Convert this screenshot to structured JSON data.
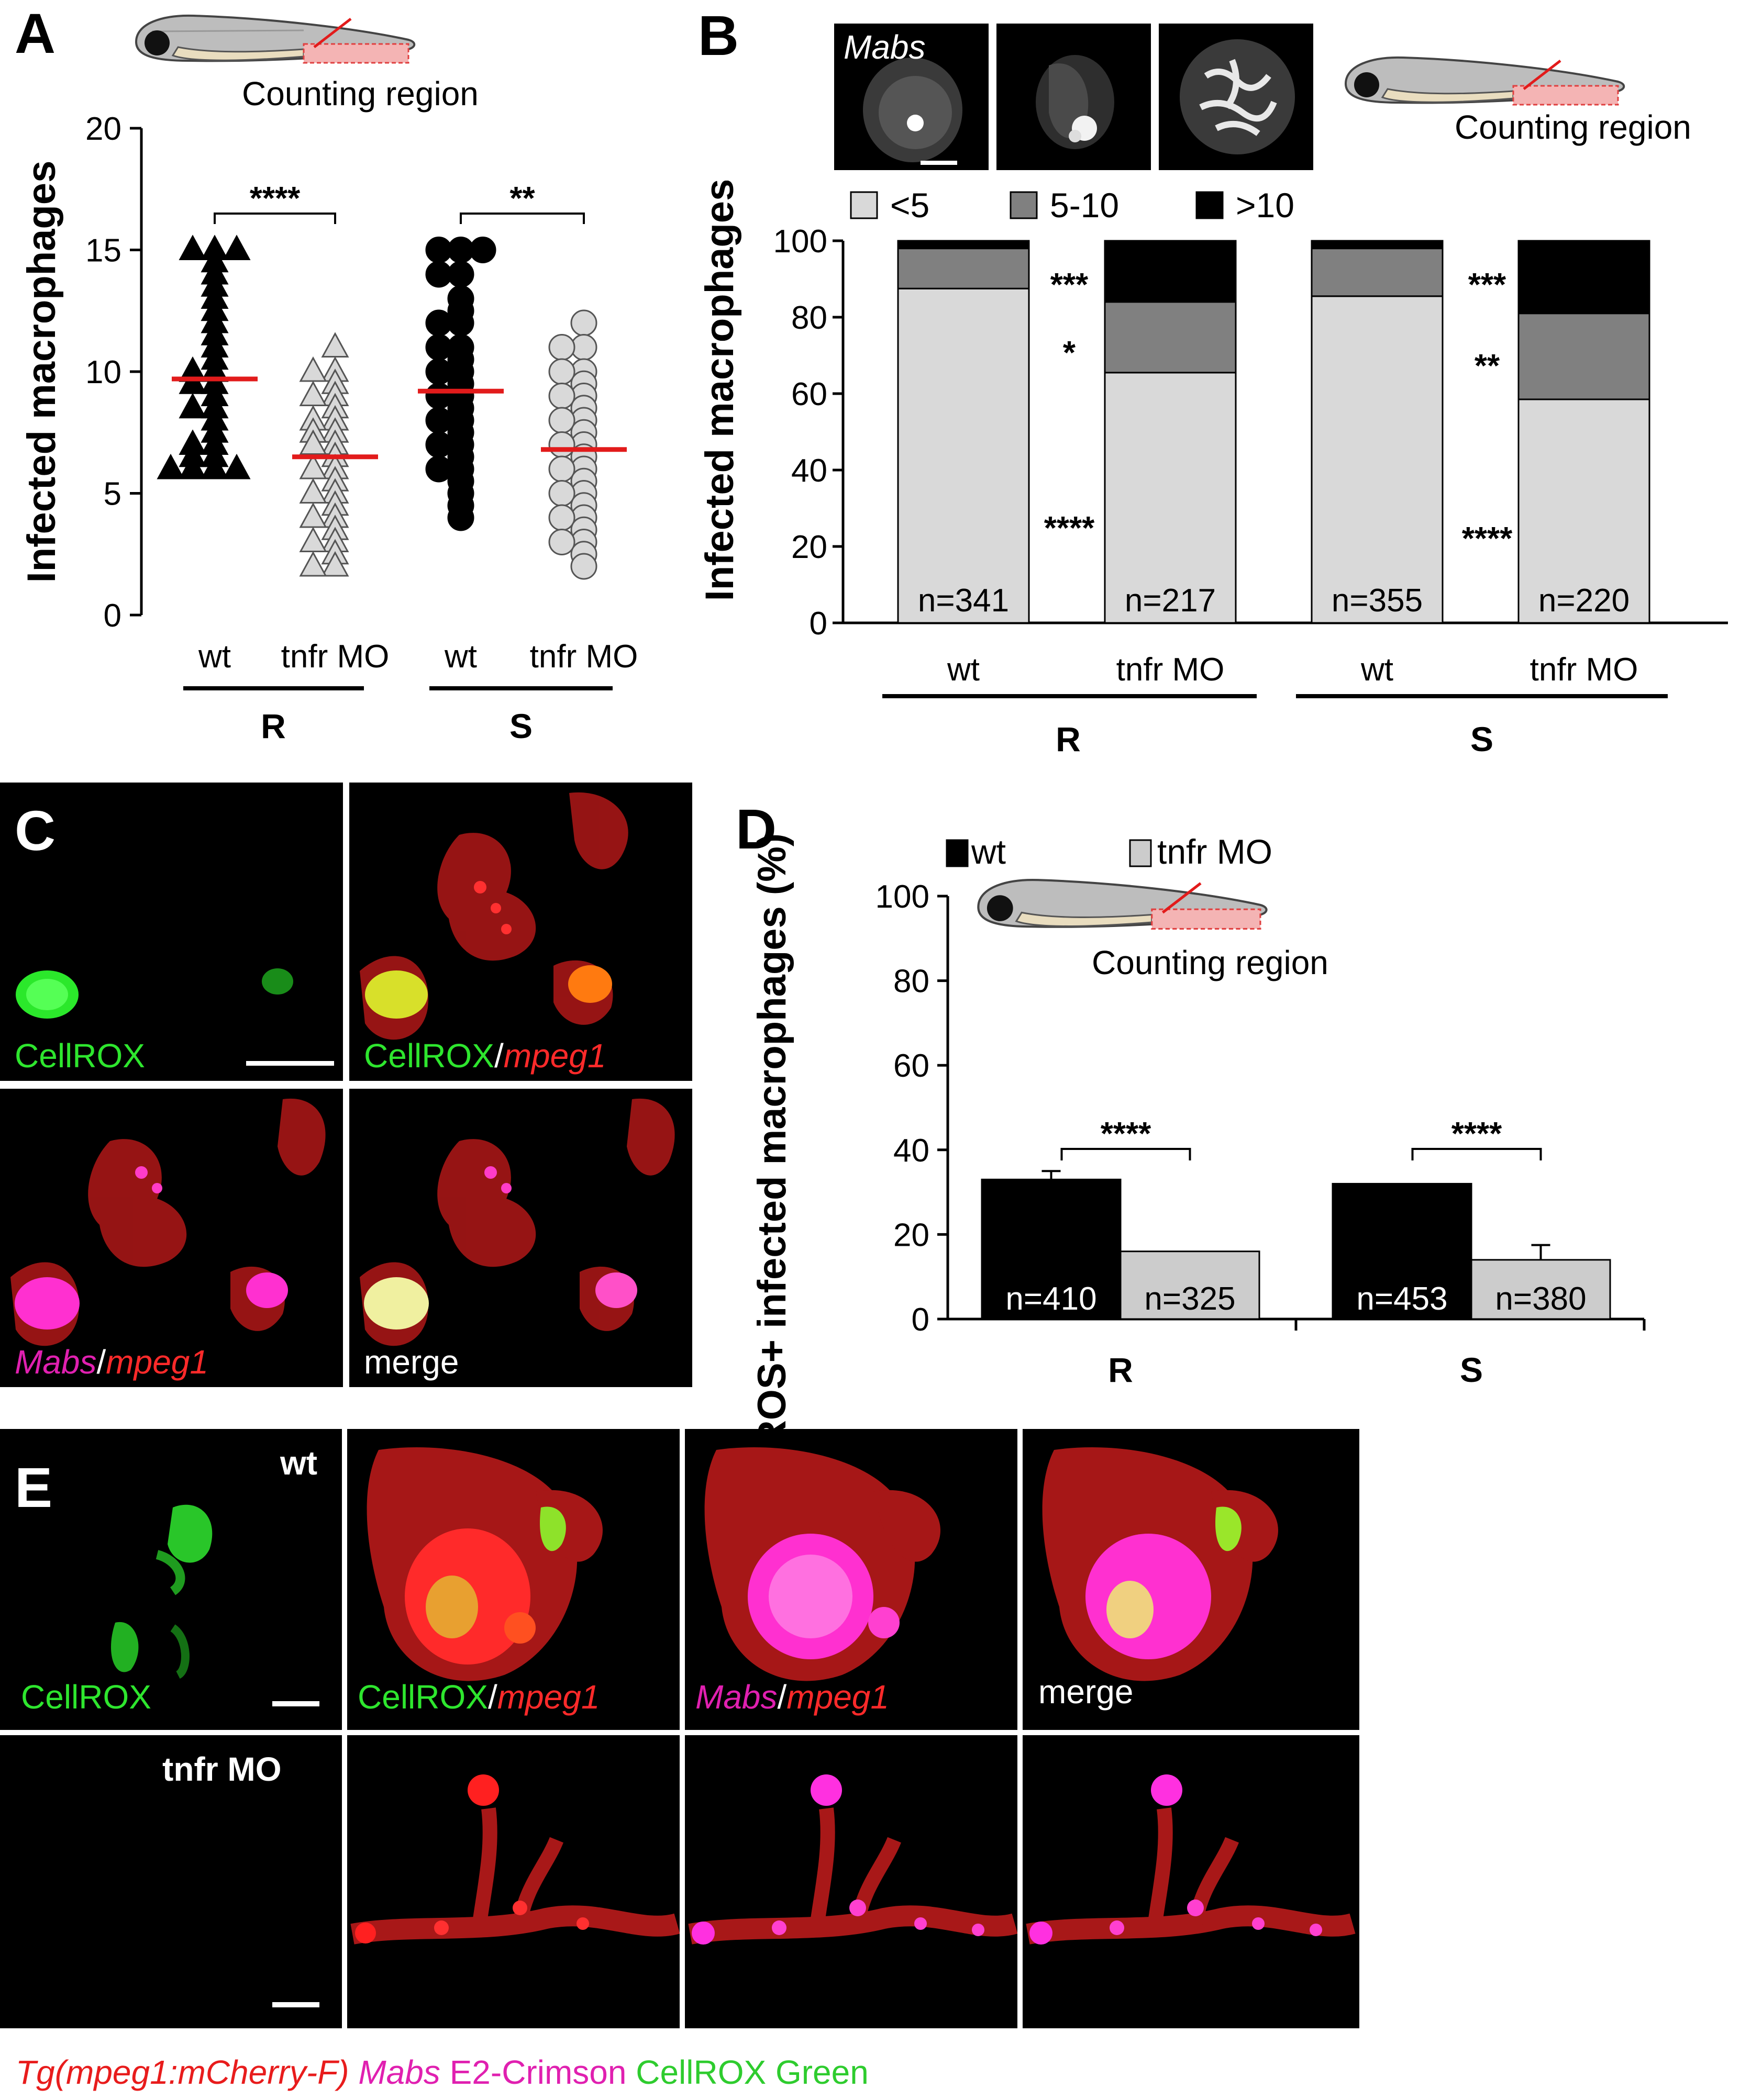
{
  "panels": {
    "a": "A",
    "b": "B",
    "c": "C",
    "d": "D",
    "e": "E"
  },
  "schematic": {
    "label": "Counting region"
  },
  "panel_a": {
    "significance": [
      "****",
      "**"
    ],
    "marker_colors": {
      "R_wt": "#000000",
      "R_tnfr": "#d9d9d9",
      "S_wt": "#000000",
      "S_tnfr": "#d9d9d9",
      "median_line": "#e21b1b"
    }
  },
  "panel_b": {
    "image_label": "Mabs",
    "bar_n": [
      "n=341",
      "n=217",
      "n=355",
      "n=220"
    ],
    "sig_R": [
      "***",
      "*",
      "****"
    ],
    "sig_S": [
      "***",
      "**",
      "****"
    ],
    "colors": {
      "lt5": "#d9d9d9",
      "5to10": "#808080",
      "gt10": "#000000"
    }
  },
  "panel_c": {
    "tl": [
      "CellROX"
    ],
    "tr": [
      "CellROX",
      "/",
      "mpeg1"
    ],
    "bl": [
      "Mabs",
      "/",
      "mpeg1"
    ],
    "br": [
      "merge"
    ]
  },
  "panel_d": {
    "significance": [
      "****",
      "****"
    ],
    "bar_n": [
      "n=410",
      "n=325",
      "n=453",
      "n=380"
    ],
    "colors": {
      "wt": "#000000",
      "tnfr": "#cccccc"
    }
  },
  "panel_e": {
    "row1_label": "wt",
    "row2_label": "tnfr MO",
    "cell1": [
      "CellROX"
    ],
    "cell2": [
      "CellROX",
      "/",
      "mpeg1"
    ],
    "cell3": [
      "Mabs",
      "/",
      "mpeg1"
    ],
    "cell4": [
      "merge"
    ]
  },
  "caption": {
    "part1": "Tg(mpeg1:mCherry-F)",
    "part2": "Mabs",
    "part3": "E2-Crimson",
    "part4": "CellROX Green"
  },
  "chart_data": [
    {
      "id": "A",
      "type": "scatter",
      "ylabel": "Infected macrophages",
      "ylim": [
        0,
        20
      ],
      "yticks": [
        0,
        5,
        10,
        15,
        20
      ],
      "categories": [
        "wt",
        "tnfr MO",
        "wt",
        "tnfr MO"
      ],
      "groups": [
        "R",
        "S"
      ],
      "series": [
        {
          "group": "R",
          "condition": "wt",
          "marker": "triangle",
          "fill": "black",
          "mean": 9.7,
          "values": [
            15,
            15,
            15,
            14.5,
            14,
            13.5,
            13,
            12.5,
            12,
            11.5,
            11,
            10.5,
            10,
            10,
            9.5,
            9.5,
            9,
            8.5,
            8.5,
            8,
            7.5,
            7,
            7,
            6.5,
            6.5,
            6,
            6,
            6,
            6
          ]
        },
        {
          "group": "R",
          "condition": "tnfr MO",
          "marker": "triangle",
          "fill": "gray",
          "mean": 6.5,
          "values": [
            11,
            10,
            10,
            9.5,
            9,
            9,
            8.5,
            8,
            8,
            7.5,
            7.5,
            7,
            7,
            6.5,
            6,
            6,
            5.5,
            5,
            5,
            4.5,
            4,
            4,
            3.5,
            3,
            3,
            2.5,
            2,
            2
          ]
        },
        {
          "group": "S",
          "condition": "wt",
          "marker": "circle",
          "fill": "black",
          "mean": 9.2,
          "values": [
            15,
            15,
            15,
            14,
            14,
            13,
            12.5,
            12,
            12,
            11,
            11,
            10.5,
            10,
            10,
            9.5,
            9,
            9,
            8.5,
            8,
            8,
            7.5,
            7,
            7,
            6.5,
            6,
            6,
            5.5,
            5,
            4.5,
            4
          ]
        },
        {
          "group": "S",
          "condition": "tnfr MO",
          "marker": "circle",
          "fill": "gray",
          "mean": 6.8,
          "values": [
            12,
            11,
            11,
            10,
            10,
            9.5,
            9,
            9,
            8.5,
            8,
            8,
            7.5,
            7,
            7,
            6.5,
            6,
            6,
            5.5,
            5,
            5,
            4.5,
            4,
            4,
            3.5,
            3,
            3,
            2.5,
            2
          ]
        }
      ]
    },
    {
      "id": "B",
      "type": "bar",
      "stacked": true,
      "ylabel": "Infected macrophages",
      "ylim": [
        0,
        100
      ],
      "yticks": [
        0,
        20,
        40,
        60,
        80,
        100
      ],
      "categories": [
        "wt",
        "tnfr MO",
        "wt",
        "tnfr MO"
      ],
      "groups": [
        "R",
        "S"
      ],
      "series": [
        {
          "name": "<5",
          "values": [
            87.5,
            65.5,
            85.5,
            58.5
          ]
        },
        {
          "name": "5-10",
          "values": [
            10.5,
            18.5,
            12.5,
            22.5
          ]
        },
        {
          "name": ">10",
          "values": [
            2,
            16,
            2,
            19
          ]
        }
      ],
      "legend": "top"
    },
    {
      "id": "D",
      "type": "bar",
      "ylabel": "ROS+ infected macrophages (%)",
      "ylim": [
        0,
        100
      ],
      "yticks": [
        0,
        20,
        40,
        60,
        80,
        100
      ],
      "categories": [
        "R",
        "S"
      ],
      "series": [
        {
          "name": "wt",
          "values": [
            33,
            32
          ],
          "err": [
            2,
            0
          ]
        },
        {
          "name": "tnfr MO",
          "values": [
            16,
            14
          ],
          "err": [
            0,
            3.5
          ]
        }
      ],
      "legend": "top-left"
    }
  ]
}
